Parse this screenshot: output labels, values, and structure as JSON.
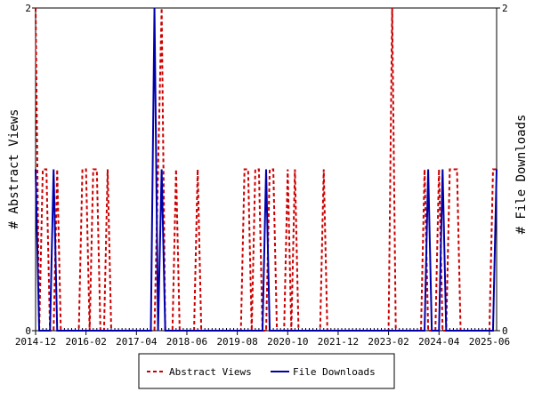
{
  "chart_data": {
    "type": "line",
    "ylabel_left": "# Abstract Views",
    "ylabel_right": "# File Downloads",
    "xlabel": "",
    "x_ticks": [
      "2014-12",
      "2016-02",
      "2017-04",
      "2018-06",
      "2019-08",
      "2020-10",
      "2021-12",
      "2023-02",
      "2024-04",
      "2025-06"
    ],
    "xlim": [
      "2014-12",
      "2025-08"
    ],
    "ylim_left": [
      0,
      2
    ],
    "ylim_right": [
      0,
      2
    ],
    "y_ticks_left": [
      "0",
      "2"
    ],
    "y_ticks_right": [
      "0",
      "2"
    ],
    "legend_position": "bottom-center",
    "series": [
      {
        "name": "Abstract Views",
        "color": "#cc0000",
        "style": "dashed",
        "axis": "left",
        "points": [
          [
            "2014-12",
            2
          ],
          [
            "2015-01",
            0
          ],
          [
            "2015-02",
            1
          ],
          [
            "2015-03",
            1
          ],
          [
            "2015-04",
            0
          ],
          [
            "2015-05",
            0
          ],
          [
            "2015-06",
            1
          ],
          [
            "2015-07",
            0
          ],
          [
            "2015-08",
            0
          ],
          [
            "2015-09",
            0
          ],
          [
            "2015-10",
            0
          ],
          [
            "2015-11",
            0
          ],
          [
            "2015-12",
            0
          ],
          [
            "2016-01",
            1
          ],
          [
            "2016-02",
            1
          ],
          [
            "2016-03",
            0
          ],
          [
            "2016-04",
            1
          ],
          [
            "2016-05",
            1
          ],
          [
            "2016-06",
            0
          ],
          [
            "2016-07",
            0
          ],
          [
            "2016-08",
            1
          ],
          [
            "2016-09",
            0
          ],
          [
            "2016-10",
            0
          ],
          [
            "2016-11",
            0
          ],
          [
            "2016-12",
            0
          ],
          [
            "2017-01",
            0
          ],
          [
            "2017-02",
            0
          ],
          [
            "2017-03",
            0
          ],
          [
            "2017-04",
            0
          ],
          [
            "2017-05",
            0
          ],
          [
            "2017-06",
            0
          ],
          [
            "2017-07",
            0
          ],
          [
            "2017-08",
            0
          ],
          [
            "2017-09",
            0
          ],
          [
            "2017-10",
            1
          ],
          [
            "2017-11",
            2
          ],
          [
            "2017-12",
            0
          ],
          [
            "2018-01",
            0
          ],
          [
            "2018-02",
            0
          ],
          [
            "2018-03",
            1
          ],
          [
            "2018-04",
            0
          ],
          [
            "2018-05",
            0
          ],
          [
            "2018-06",
            0
          ],
          [
            "2018-07",
            0
          ],
          [
            "2018-08",
            0
          ],
          [
            "2018-09",
            1
          ],
          [
            "2018-10",
            0
          ],
          [
            "2018-11",
            0
          ],
          [
            "2018-12",
            0
          ],
          [
            "2019-01",
            0
          ],
          [
            "2019-02",
            0
          ],
          [
            "2019-03",
            0
          ],
          [
            "2019-04",
            0
          ],
          [
            "2019-05",
            0
          ],
          [
            "2019-06",
            0
          ],
          [
            "2019-07",
            0
          ],
          [
            "2019-08",
            0
          ],
          [
            "2019-09",
            0
          ],
          [
            "2019-10",
            1
          ],
          [
            "2019-11",
            1
          ],
          [
            "2019-12",
            0
          ],
          [
            "2020-01",
            1
          ],
          [
            "2020-02",
            1
          ],
          [
            "2020-03",
            0
          ],
          [
            "2020-04",
            0
          ],
          [
            "2020-05",
            1
          ],
          [
            "2020-06",
            1
          ],
          [
            "2020-07",
            0
          ],
          [
            "2020-08",
            0
          ],
          [
            "2020-09",
            0
          ],
          [
            "2020-10",
            1
          ],
          [
            "2020-11",
            0
          ],
          [
            "2020-12",
            1
          ],
          [
            "2021-01",
            0
          ],
          [
            "2021-02",
            0
          ],
          [
            "2021-03",
            0
          ],
          [
            "2021-04",
            0
          ],
          [
            "2021-05",
            0
          ],
          [
            "2021-06",
            0
          ],
          [
            "2021-07",
            0
          ],
          [
            "2021-08",
            1
          ],
          [
            "2021-09",
            0
          ],
          [
            "2021-10",
            0
          ],
          [
            "2021-11",
            0
          ],
          [
            "2021-12",
            0
          ],
          [
            "2022-01",
            0
          ],
          [
            "2022-02",
            0
          ],
          [
            "2022-03",
            0
          ],
          [
            "2022-04",
            0
          ],
          [
            "2022-05",
            0
          ],
          [
            "2022-06",
            0
          ],
          [
            "2022-07",
            0
          ],
          [
            "2022-08",
            0
          ],
          [
            "2022-09",
            0
          ],
          [
            "2022-10",
            0
          ],
          [
            "2022-11",
            0
          ],
          [
            "2022-12",
            0
          ],
          [
            "2023-01",
            0
          ],
          [
            "2023-02",
            0
          ],
          [
            "2023-03",
            2
          ],
          [
            "2023-04",
            0
          ],
          [
            "2023-05",
            0
          ],
          [
            "2023-06",
            0
          ],
          [
            "2023-07",
            0
          ],
          [
            "2023-08",
            0
          ],
          [
            "2023-09",
            0
          ],
          [
            "2023-10",
            0
          ],
          [
            "2023-11",
            0
          ],
          [
            "2023-12",
            1
          ],
          [
            "2024-01",
            0
          ],
          [
            "2024-02",
            0
          ],
          [
            "2024-03",
            0
          ],
          [
            "2024-04",
            1
          ],
          [
            "2024-05",
            0
          ],
          [
            "2024-06",
            0
          ],
          [
            "2024-07",
            1
          ],
          [
            "2024-08",
            1
          ],
          [
            "2024-09",
            1
          ],
          [
            "2024-10",
            0
          ],
          [
            "2024-11",
            0
          ],
          [
            "2024-12",
            0
          ],
          [
            "2025-01",
            0
          ],
          [
            "2025-02",
            0
          ],
          [
            "2025-03",
            0
          ],
          [
            "2025-04",
            0
          ],
          [
            "2025-05",
            0
          ],
          [
            "2025-06",
            0
          ],
          [
            "2025-07",
            1
          ],
          [
            "2025-08",
            1
          ]
        ]
      },
      {
        "name": "File Downloads",
        "color": "#0000aa",
        "style": "solid",
        "axis": "right",
        "points": [
          [
            "2014-12",
            1
          ],
          [
            "2015-01",
            0
          ],
          [
            "2015-02",
            0
          ],
          [
            "2015-03",
            0
          ],
          [
            "2015-04",
            0
          ],
          [
            "2015-05",
            1
          ],
          [
            "2015-06",
            0
          ],
          [
            "2015-07",
            0
          ],
          [
            "2015-08",
            0
          ],
          [
            "2015-09",
            0
          ],
          [
            "2015-10",
            0
          ],
          [
            "2015-11",
            0
          ],
          [
            "2015-12",
            0
          ],
          [
            "2016-01",
            0
          ],
          [
            "2016-02",
            0
          ],
          [
            "2016-03",
            0
          ],
          [
            "2016-04",
            0
          ],
          [
            "2016-05",
            0
          ],
          [
            "2016-06",
            0
          ],
          [
            "2016-07",
            0
          ],
          [
            "2016-08",
            0
          ],
          [
            "2016-09",
            0
          ],
          [
            "2016-10",
            0
          ],
          [
            "2016-11",
            0
          ],
          [
            "2016-12",
            0
          ],
          [
            "2017-01",
            0
          ],
          [
            "2017-02",
            0
          ],
          [
            "2017-03",
            0
          ],
          [
            "2017-04",
            0
          ],
          [
            "2017-05",
            0
          ],
          [
            "2017-06",
            0
          ],
          [
            "2017-07",
            0
          ],
          [
            "2017-08",
            0
          ],
          [
            "2017-09",
            2
          ],
          [
            "2017-10",
            0
          ],
          [
            "2017-11",
            1
          ],
          [
            "2017-12",
            0
          ],
          [
            "2018-01",
            0
          ],
          [
            "2018-02",
            0
          ],
          [
            "2018-03",
            0
          ],
          [
            "2018-04",
            0
          ],
          [
            "2018-05",
            0
          ],
          [
            "2018-06",
            0
          ],
          [
            "2018-07",
            0
          ],
          [
            "2018-08",
            0
          ],
          [
            "2018-09",
            0
          ],
          [
            "2018-10",
            0
          ],
          [
            "2018-11",
            0
          ],
          [
            "2018-12",
            0
          ],
          [
            "2019-01",
            0
          ],
          [
            "2019-02",
            0
          ],
          [
            "2019-03",
            0
          ],
          [
            "2019-04",
            0
          ],
          [
            "2019-05",
            0
          ],
          [
            "2019-06",
            0
          ],
          [
            "2019-07",
            0
          ],
          [
            "2019-08",
            0
          ],
          [
            "2019-09",
            0
          ],
          [
            "2019-10",
            0
          ],
          [
            "2019-11",
            0
          ],
          [
            "2019-12",
            0
          ],
          [
            "2020-01",
            0
          ],
          [
            "2020-02",
            0
          ],
          [
            "2020-03",
            0
          ],
          [
            "2020-04",
            1
          ],
          [
            "2020-05",
            0
          ],
          [
            "2020-06",
            0
          ],
          [
            "2020-07",
            0
          ],
          [
            "2020-08",
            0
          ],
          [
            "2020-09",
            0
          ],
          [
            "2020-10",
            0
          ],
          [
            "2020-11",
            0
          ],
          [
            "2020-12",
            0
          ],
          [
            "2021-01",
            0
          ],
          [
            "2021-02",
            0
          ],
          [
            "2021-03",
            0
          ],
          [
            "2021-04",
            0
          ],
          [
            "2021-05",
            0
          ],
          [
            "2021-06",
            0
          ],
          [
            "2021-07",
            0
          ],
          [
            "2021-08",
            0
          ],
          [
            "2021-09",
            0
          ],
          [
            "2021-10",
            0
          ],
          [
            "2021-11",
            0
          ],
          [
            "2021-12",
            0
          ],
          [
            "2022-01",
            0
          ],
          [
            "2022-02",
            0
          ],
          [
            "2022-03",
            0
          ],
          [
            "2022-04",
            0
          ],
          [
            "2022-05",
            0
          ],
          [
            "2022-06",
            0
          ],
          [
            "2022-07",
            0
          ],
          [
            "2022-08",
            0
          ],
          [
            "2022-09",
            0
          ],
          [
            "2022-10",
            0
          ],
          [
            "2022-11",
            0
          ],
          [
            "2022-12",
            0
          ],
          [
            "2023-01",
            0
          ],
          [
            "2023-02",
            0
          ],
          [
            "2023-03",
            0
          ],
          [
            "2023-04",
            0
          ],
          [
            "2023-05",
            0
          ],
          [
            "2023-06",
            0
          ],
          [
            "2023-07",
            0
          ],
          [
            "2023-08",
            0
          ],
          [
            "2023-09",
            0
          ],
          [
            "2023-10",
            0
          ],
          [
            "2023-11",
            0
          ],
          [
            "2023-12",
            0
          ],
          [
            "2024-01",
            1
          ],
          [
            "2024-02",
            0
          ],
          [
            "2024-03",
            0
          ],
          [
            "2024-04",
            0
          ],
          [
            "2024-05",
            1
          ],
          [
            "2024-06",
            0
          ],
          [
            "2024-07",
            0
          ],
          [
            "2024-08",
            0
          ],
          [
            "2024-09",
            0
          ],
          [
            "2024-10",
            0
          ],
          [
            "2024-11",
            0
          ],
          [
            "2024-12",
            0
          ],
          [
            "2025-01",
            0
          ],
          [
            "2025-02",
            0
          ],
          [
            "2025-03",
            0
          ],
          [
            "2025-04",
            0
          ],
          [
            "2025-05",
            0
          ],
          [
            "2025-06",
            0
          ],
          [
            "2025-07",
            0
          ],
          [
            "2025-08",
            1
          ]
        ]
      }
    ]
  }
}
